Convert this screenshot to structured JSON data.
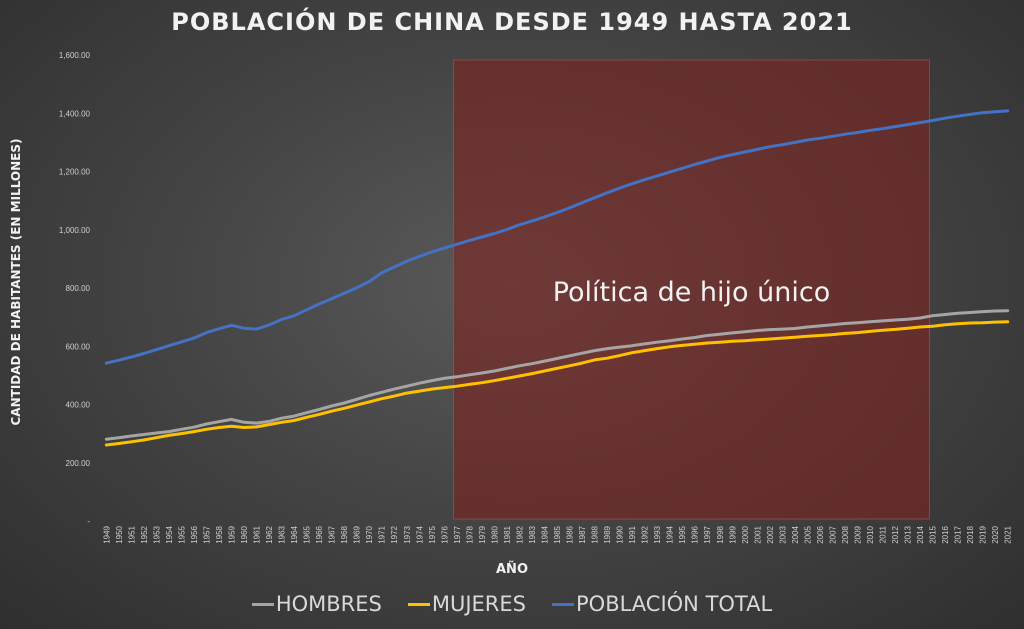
{
  "chart_data": {
    "type": "line",
    "title": "POBLACIÓN DE CHINA DESDE 1949 HASTA 2021",
    "xlabel": "AÑO",
    "ylabel": "CANTIDAD DE HABITANTES (EN MILLONES)",
    "ylim": [
      0,
      1600
    ],
    "yticks": [
      "-",
      "200.00",
      "400.00",
      "600.00",
      "800.00",
      "1,000.00",
      "1,200.00",
      "1,400.00",
      "1,600.00"
    ],
    "x": [
      "1949",
      "1950",
      "1951",
      "1952",
      "1953",
      "1954",
      "1955",
      "1956",
      "1957",
      "1958",
      "1959",
      "1960",
      "1961",
      "1962",
      "1963",
      "1964",
      "1965",
      "1966",
      "1967",
      "1968",
      "1969",
      "1970",
      "1971",
      "1972",
      "1973",
      "1974",
      "1975",
      "1976",
      "1977",
      "1978",
      "1979",
      "1980",
      "1981",
      "1982",
      "1983",
      "1984",
      "1985",
      "1986",
      "1987",
      "1988",
      "1989",
      "1990",
      "1991",
      "1992",
      "1993",
      "1994",
      "1995",
      "1996",
      "1997",
      "1998",
      "1999",
      "2000",
      "2001",
      "2002",
      "2003",
      "2004",
      "2005",
      "2006",
      "2007",
      "2008",
      "2009",
      "2010",
      "2011",
      "2012",
      "2013",
      "2014",
      "2015",
      "2016",
      "2017",
      "2018",
      "2019",
      "2020",
      "2021"
    ],
    "series": [
      {
        "name": "HOMBRES",
        "color": "#a5a5a5",
        "values": [
          281,
          286,
          292,
          297,
          302,
          307,
          315,
          322,
          333,
          341,
          349,
          339,
          336,
          342,
          353,
          360,
          372,
          383,
          395,
          405,
          418,
          431,
          442,
          453,
          463,
          473,
          482,
          490,
          495,
          502,
          508,
          515,
          524,
          533,
          540,
          549,
          558,
          567,
          576,
          585,
          592,
          597,
          602,
          608,
          614,
          619,
          625,
          630,
          637,
          641,
          646,
          650,
          654,
          657,
          659,
          661,
          666,
          670,
          674,
          678,
          681,
          684,
          687,
          690,
          693,
          697,
          705,
          709,
          713,
          716,
          719,
          721,
          722
        ]
      },
      {
        "name": "MUJERES",
        "color": "#ffc000",
        "values": [
          261,
          266,
          272,
          278,
          286,
          294,
          300,
          307,
          315,
          321,
          325,
          321,
          323,
          331,
          339,
          345,
          356,
          366,
          377,
          387,
          398,
          409,
          420,
          429,
          439,
          446,
          453,
          458,
          463,
          469,
          475,
          482,
          490,
          498,
          506,
          515,
          524,
          533,
          542,
          553,
          559,
          568,
          578,
          585,
          592,
          598,
          603,
          607,
          611,
          614,
          617,
          619,
          622,
          625,
          628,
          631,
          634,
          637,
          640,
          644,
          647,
          651,
          655,
          658,
          662,
          666,
          669,
          674,
          677,
          680,
          681,
          683,
          684
        ]
      },
      {
        "name": "POBLACIÓN TOTAL",
        "color": "#4472c4",
        "values": [
          542,
          552,
          563,
          575,
          588,
          602,
          615,
          628,
          647,
          660,
          672,
          662,
          659,
          673,
          692,
          705,
          725,
          745,
          763,
          782,
          801,
          822,
          852,
          872,
          892,
          908,
          924,
          937,
          950,
          963,
          975,
          987,
          1001,
          1017,
          1030,
          1044,
          1059,
          1075,
          1093,
          1110,
          1127,
          1143,
          1158,
          1172,
          1185,
          1198,
          1211,
          1224,
          1236,
          1248,
          1258,
          1267,
          1276,
          1285,
          1292,
          1300,
          1308,
          1314,
          1321,
          1328,
          1334,
          1341,
          1347,
          1354,
          1361,
          1368,
          1375,
          1383,
          1390,
          1396,
          1402,
          1405,
          1408
        ]
      }
    ],
    "annotation": {
      "text": "Política de hijo único",
      "from": "1977",
      "to": "2015",
      "color": "#7b2320"
    },
    "grid": false,
    "legend": "bottom"
  }
}
